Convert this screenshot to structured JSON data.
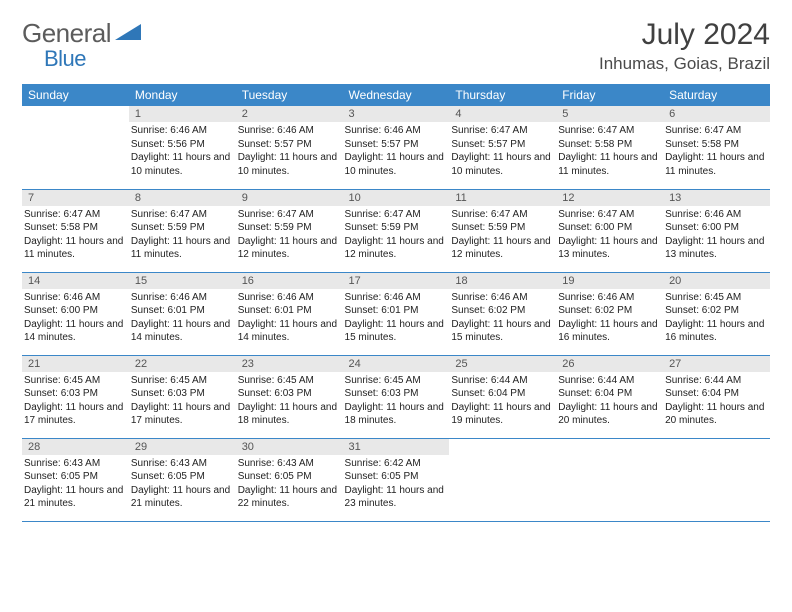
{
  "brand": {
    "part1": "General",
    "part2": "Blue",
    "color1": "#6a6a6a",
    "color2": "#2f77b8"
  },
  "title": "July 2024",
  "location": "Inhumas, Goias, Brazil",
  "colors": {
    "header_bg": "#3b87c8",
    "header_fg": "#ffffff",
    "daynum_bg": "#e8e8e8",
    "daynum_fg": "#555555",
    "row_border": "#3b87c8",
    "body_text": "#222222"
  },
  "weekdays": [
    "Sunday",
    "Monday",
    "Tuesday",
    "Wednesday",
    "Thursday",
    "Friday",
    "Saturday"
  ],
  "weeks": [
    [
      null,
      {
        "n": "1",
        "sr": "6:46 AM",
        "ss": "5:56 PM",
        "dl": "11 hours and 10 minutes."
      },
      {
        "n": "2",
        "sr": "6:46 AM",
        "ss": "5:57 PM",
        "dl": "11 hours and 10 minutes."
      },
      {
        "n": "3",
        "sr": "6:46 AM",
        "ss": "5:57 PM",
        "dl": "11 hours and 10 minutes."
      },
      {
        "n": "4",
        "sr": "6:47 AM",
        "ss": "5:57 PM",
        "dl": "11 hours and 10 minutes."
      },
      {
        "n": "5",
        "sr": "6:47 AM",
        "ss": "5:58 PM",
        "dl": "11 hours and 11 minutes."
      },
      {
        "n": "6",
        "sr": "6:47 AM",
        "ss": "5:58 PM",
        "dl": "11 hours and 11 minutes."
      }
    ],
    [
      {
        "n": "7",
        "sr": "6:47 AM",
        "ss": "5:58 PM",
        "dl": "11 hours and 11 minutes."
      },
      {
        "n": "8",
        "sr": "6:47 AM",
        "ss": "5:59 PM",
        "dl": "11 hours and 11 minutes."
      },
      {
        "n": "9",
        "sr": "6:47 AM",
        "ss": "5:59 PM",
        "dl": "11 hours and 12 minutes."
      },
      {
        "n": "10",
        "sr": "6:47 AM",
        "ss": "5:59 PM",
        "dl": "11 hours and 12 minutes."
      },
      {
        "n": "11",
        "sr": "6:47 AM",
        "ss": "5:59 PM",
        "dl": "11 hours and 12 minutes."
      },
      {
        "n": "12",
        "sr": "6:47 AM",
        "ss": "6:00 PM",
        "dl": "11 hours and 13 minutes."
      },
      {
        "n": "13",
        "sr": "6:46 AM",
        "ss": "6:00 PM",
        "dl": "11 hours and 13 minutes."
      }
    ],
    [
      {
        "n": "14",
        "sr": "6:46 AM",
        "ss": "6:00 PM",
        "dl": "11 hours and 14 minutes."
      },
      {
        "n": "15",
        "sr": "6:46 AM",
        "ss": "6:01 PM",
        "dl": "11 hours and 14 minutes."
      },
      {
        "n": "16",
        "sr": "6:46 AM",
        "ss": "6:01 PM",
        "dl": "11 hours and 14 minutes."
      },
      {
        "n": "17",
        "sr": "6:46 AM",
        "ss": "6:01 PM",
        "dl": "11 hours and 15 minutes."
      },
      {
        "n": "18",
        "sr": "6:46 AM",
        "ss": "6:02 PM",
        "dl": "11 hours and 15 minutes."
      },
      {
        "n": "19",
        "sr": "6:46 AM",
        "ss": "6:02 PM",
        "dl": "11 hours and 16 minutes."
      },
      {
        "n": "20",
        "sr": "6:45 AM",
        "ss": "6:02 PM",
        "dl": "11 hours and 16 minutes."
      }
    ],
    [
      {
        "n": "21",
        "sr": "6:45 AM",
        "ss": "6:03 PM",
        "dl": "11 hours and 17 minutes."
      },
      {
        "n": "22",
        "sr": "6:45 AM",
        "ss": "6:03 PM",
        "dl": "11 hours and 17 minutes."
      },
      {
        "n": "23",
        "sr": "6:45 AM",
        "ss": "6:03 PM",
        "dl": "11 hours and 18 minutes."
      },
      {
        "n": "24",
        "sr": "6:45 AM",
        "ss": "6:03 PM",
        "dl": "11 hours and 18 minutes."
      },
      {
        "n": "25",
        "sr": "6:44 AM",
        "ss": "6:04 PM",
        "dl": "11 hours and 19 minutes."
      },
      {
        "n": "26",
        "sr": "6:44 AM",
        "ss": "6:04 PM",
        "dl": "11 hours and 20 minutes."
      },
      {
        "n": "27",
        "sr": "6:44 AM",
        "ss": "6:04 PM",
        "dl": "11 hours and 20 minutes."
      }
    ],
    [
      {
        "n": "28",
        "sr": "6:43 AM",
        "ss": "6:05 PM",
        "dl": "11 hours and 21 minutes."
      },
      {
        "n": "29",
        "sr": "6:43 AM",
        "ss": "6:05 PM",
        "dl": "11 hours and 21 minutes."
      },
      {
        "n": "30",
        "sr": "6:43 AM",
        "ss": "6:05 PM",
        "dl": "11 hours and 22 minutes."
      },
      {
        "n": "31",
        "sr": "6:42 AM",
        "ss": "6:05 PM",
        "dl": "11 hours and 23 minutes."
      },
      null,
      null,
      null
    ]
  ],
  "labels": {
    "sunrise": "Sunrise:",
    "sunset": "Sunset:",
    "daylight": "Daylight:"
  }
}
